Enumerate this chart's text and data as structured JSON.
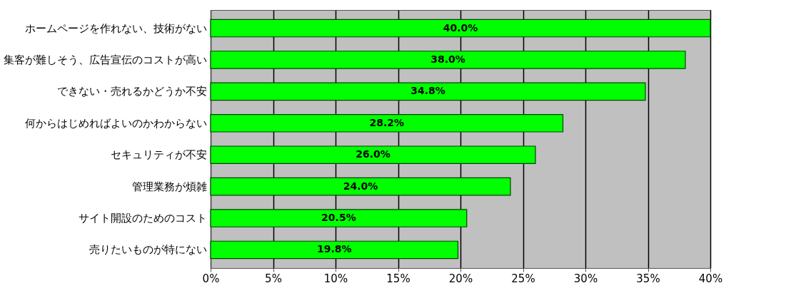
{
  "chart_data": {
    "type": "bar",
    "orientation": "horizontal",
    "categories": [
      "ホームページを作れない、技術がない",
      "集客が難しそう、広告宣伝のコストが高い",
      "できない・売れるかどうか不安",
      "何からはじめればよいのかわからない",
      "セキュリティが不安",
      "管理業務が煩雑",
      "サイト開設のためのコスト",
      "売りたいものが特にない"
    ],
    "values": [
      40.0,
      38.0,
      34.8,
      28.2,
      26.0,
      24.0,
      20.5,
      19.8
    ],
    "value_labels": [
      "40.0%",
      "38.0%",
      "34.8%",
      "28.2%",
      "26.0%",
      "24.0%",
      "20.5%",
      "19.8%"
    ],
    "color": "#00ff00",
    "xlim": [
      0,
      40
    ],
    "xticks": [
      {
        "value": 0,
        "label": "0%"
      },
      {
        "value": 5,
        "label": "5%"
      },
      {
        "value": 10,
        "label": "10%"
      },
      {
        "value": 15,
        "label": "15%"
      },
      {
        "value": 20,
        "label": "20%"
      },
      {
        "value": 25,
        "label": "25%"
      },
      {
        "value": 30,
        "label": "30%"
      },
      {
        "value": 35,
        "label": "35%"
      },
      {
        "value": 40,
        "label": "40%"
      }
    ],
    "grid": "x"
  }
}
